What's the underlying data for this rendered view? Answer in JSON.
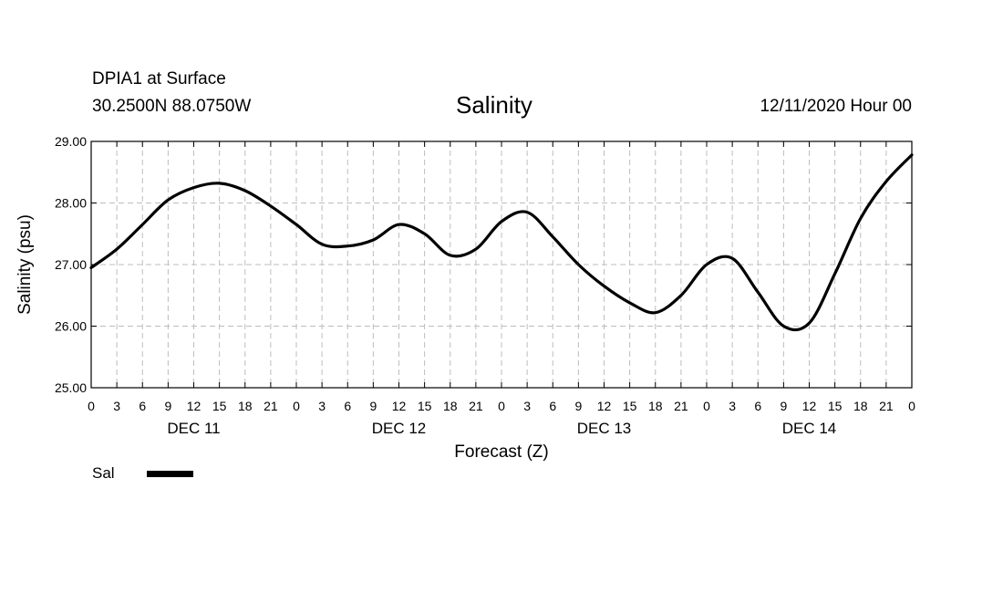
{
  "header": {
    "station": "DPIA1 at Surface",
    "coords": "30.2500N 88.0750W",
    "title": "Salinity",
    "run": "12/11/2020 Hour 00"
  },
  "legend": {
    "label": "Sal"
  },
  "colors": {
    "line": "#000000",
    "grid": "#bdbdbd",
    "background": "#ffffff"
  },
  "chart_data": {
    "type": "line",
    "title": "Salinity",
    "xlabel": "Forecast (Z)",
    "ylabel": "Salinity (psu)",
    "xlim": [
      0,
      96
    ],
    "ylim": [
      25,
      29
    ],
    "yticks": [
      25,
      26,
      27,
      28,
      29
    ],
    "ytick_labels": [
      "25.00",
      "26.00",
      "27.00",
      "28.00",
      "29.00"
    ],
    "xtick_labels": [
      "0",
      "3",
      "6",
      "9",
      "12",
      "15",
      "18",
      "21",
      "0",
      "3",
      "6",
      "9",
      "12",
      "15",
      "18",
      "21",
      "0",
      "3",
      "6",
      "9",
      "12",
      "15",
      "18",
      "21",
      "0",
      "3",
      "6",
      "9",
      "12",
      "15",
      "18",
      "21",
      "0"
    ],
    "day_labels": [
      {
        "label": "DEC 11",
        "hour": 12
      },
      {
        "label": "DEC 12",
        "hour": 36
      },
      {
        "label": "DEC 13",
        "hour": 60
      },
      {
        "label": "DEC 14",
        "hour": 84
      }
    ],
    "grid": true,
    "series": [
      {
        "name": "Sal",
        "x": [
          0,
          3,
          6,
          9,
          12,
          15,
          18,
          21,
          24,
          27,
          30,
          33,
          36,
          39,
          42,
          45,
          48,
          51,
          54,
          57,
          60,
          63,
          66,
          69,
          72,
          75,
          78,
          81,
          84,
          87,
          90,
          93,
          96
        ],
        "values": [
          26.95,
          27.25,
          27.65,
          28.05,
          28.25,
          28.32,
          28.2,
          27.95,
          27.65,
          27.33,
          27.3,
          27.4,
          27.65,
          27.5,
          27.15,
          27.25,
          27.7,
          27.85,
          27.45,
          27.0,
          26.65,
          26.38,
          26.22,
          26.5,
          27.0,
          27.1,
          26.55,
          26.0,
          26.05,
          26.85,
          27.75,
          28.35,
          28.78
        ]
      }
    ]
  }
}
